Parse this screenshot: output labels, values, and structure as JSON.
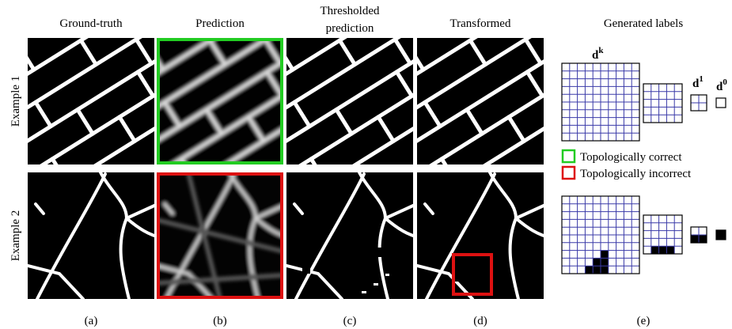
{
  "columns": [
    [
      "Ground-truth"
    ],
    [
      "Prediction"
    ],
    [
      "Thresholded",
      "prediction"
    ],
    [
      "Transformed"
    ],
    [
      "Generated labels"
    ]
  ],
  "rows": [
    "Example 1",
    "Example 2"
  ],
  "levels": [
    {
      "base": "d",
      "sup": "k"
    },
    {
      "base": "d",
      "sup": "1"
    },
    {
      "base": "d",
      "sup": "0"
    }
  ],
  "legend": [
    "Topologically correct",
    "Topologically incorrect"
  ],
  "sublabels": [
    "(a)",
    "(b)",
    "(c)",
    "(d)",
    "(e)"
  ]
}
